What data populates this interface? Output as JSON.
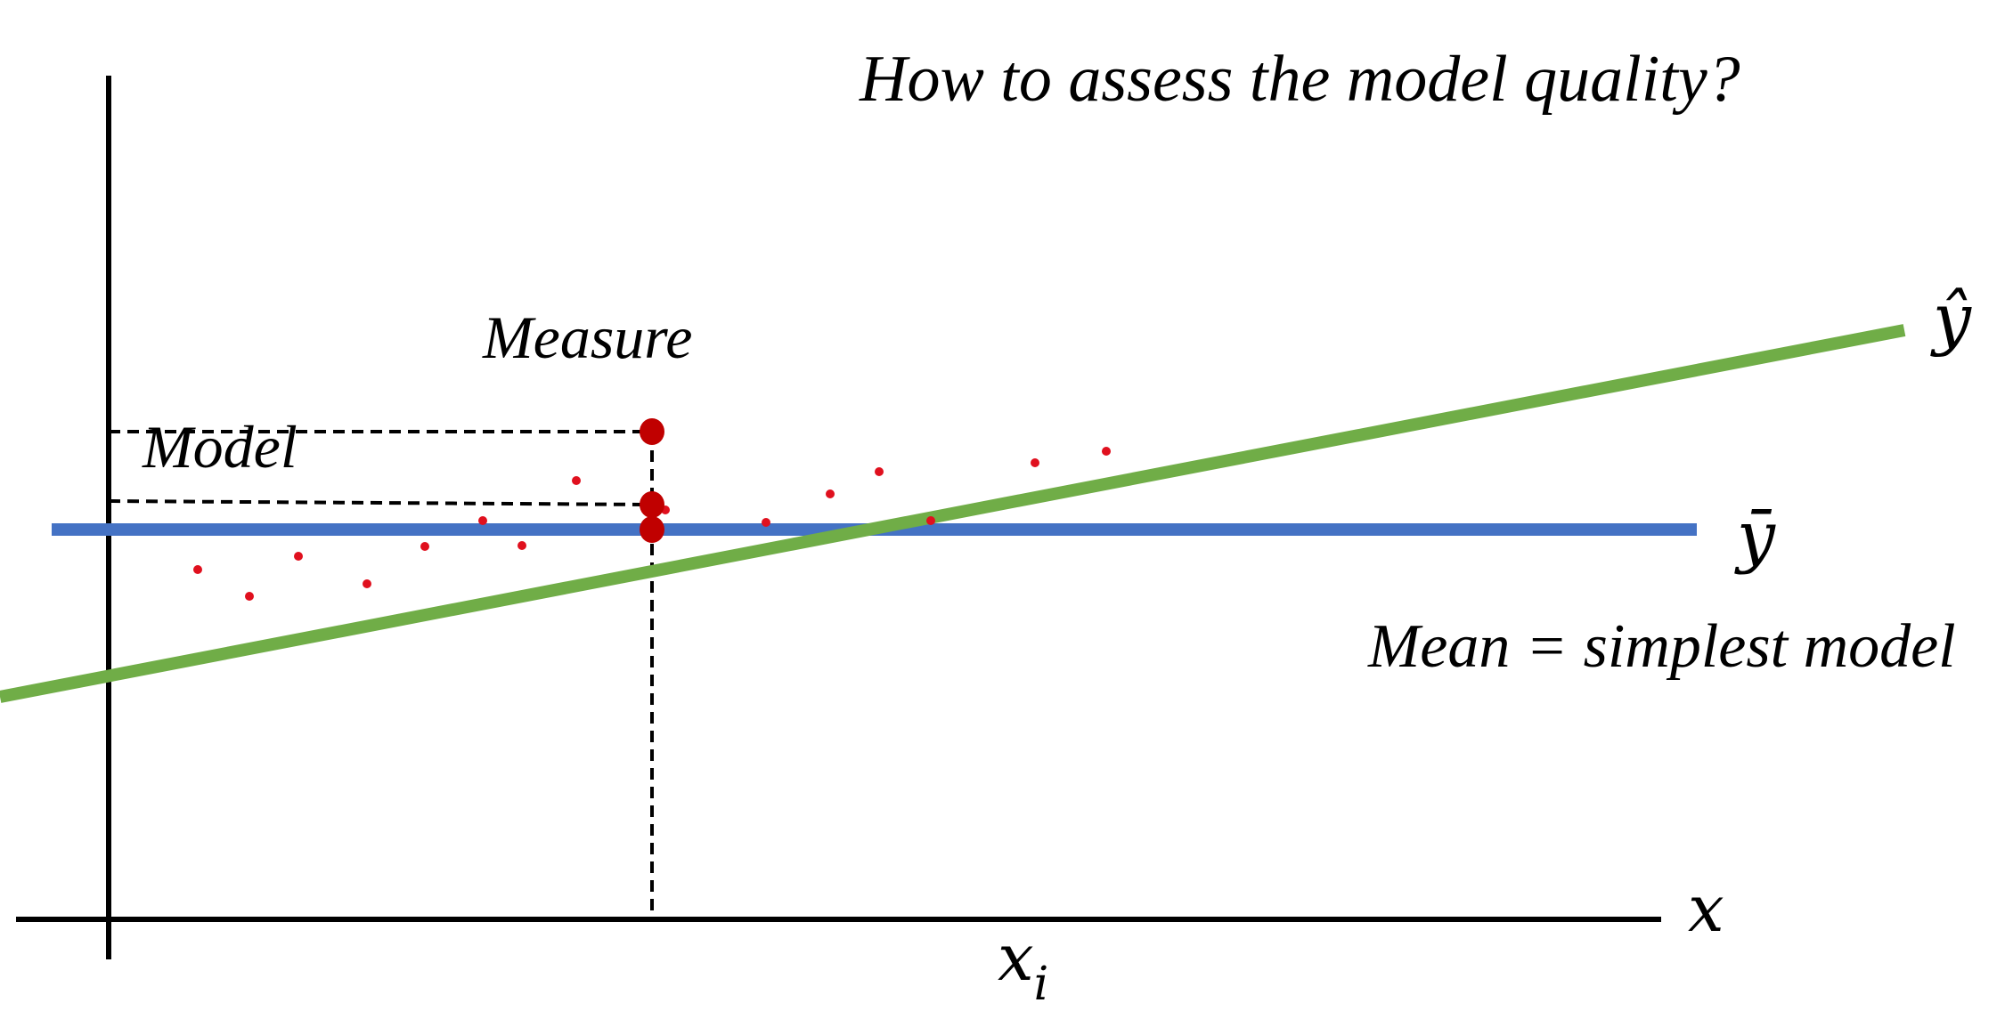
{
  "title": "How to assess the model quality?",
  "labels": {
    "measure": "Measure",
    "model": "Model",
    "mean_note": "Mean = simplest model",
    "x_axis": "x",
    "x_i_base": "x",
    "x_i_sub": "i",
    "y_hat": "ŷ",
    "y_bar": "ȳ"
  },
  "colors": {
    "axis": "#000000",
    "regression_line": "#70ad47",
    "mean_line": "#4472c4",
    "points": "#e0101e",
    "highlight_points": "#c00000",
    "guide_lines": "#000000"
  },
  "chart_data": {
    "type": "scatter",
    "title": "How to assess the model quality?",
    "xlabel": "x",
    "ylabel": "",
    "points": [
      [
        100,
        -45
      ],
      [
        158,
        -75
      ],
      [
        213,
        -30
      ],
      [
        290,
        -61
      ],
      [
        355,
        -19
      ],
      [
        420,
        10
      ],
      [
        464,
        -18
      ],
      [
        525,
        55
      ],
      [
        625,
        22
      ],
      [
        738,
        8
      ],
      [
        810,
        40
      ],
      [
        865,
        65
      ],
      [
        923,
        10
      ],
      [
        1040,
        75
      ],
      [
        1120,
        88
      ]
    ],
    "regression_line": {
      "label": "ŷ",
      "x": [
        -30,
        1280
      ],
      "y": [
        -79,
        150
      ]
    },
    "mean_line": {
      "label": "ȳ",
      "y": 0,
      "x": [
        0,
        1250
      ]
    },
    "highlight": {
      "x_label": "x_i",
      "x": 610,
      "measure_y": 110,
      "model_y": 28,
      "mean_y": 0
    }
  }
}
